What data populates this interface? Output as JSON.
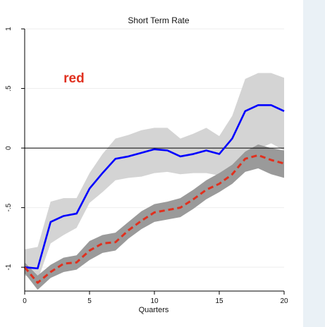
{
  "chart_data": {
    "type": "line",
    "title": "Short Term Rate",
    "xlabel": "Quarters",
    "ylabel": "",
    "xlim": [
      0,
      20
    ],
    "ylim": [
      -1.2,
      1.0
    ],
    "x_ticks": [
      0,
      5,
      10,
      15,
      20
    ],
    "y_ticks": [
      -1,
      -0.5,
      0,
      0.5,
      1
    ],
    "x_tick_labels": [
      "0",
      "5",
      "10",
      "15",
      "20"
    ],
    "y_tick_labels": [
      "-1",
      "-.5",
      "0",
      ".5",
      "1"
    ],
    "grid": true,
    "legend": "none",
    "annotations": [
      {
        "text": "red",
        "x": 3.8,
        "y": 0.55,
        "color": "#e0301e"
      }
    ],
    "x": [
      0,
      1,
      2,
      3,
      4,
      5,
      6,
      7,
      8,
      9,
      10,
      11,
      12,
      13,
      14,
      15,
      16,
      17,
      18,
      19,
      20
    ],
    "series": [
      {
        "color": "#0000ff",
        "style": "solid",
        "values": [
          -1.0,
          -1.01,
          -0.62,
          -0.57,
          -0.55,
          -0.34,
          -0.21,
          -0.09,
          -0.07,
          -0.04,
          -0.01,
          -0.02,
          -0.07,
          -0.05,
          -0.02,
          -0.05,
          0.08,
          0.31,
          0.36,
          0.36,
          0.31
        ],
        "band": {
          "color": "#d4d4d4",
          "lower": [
            -1.07,
            -1.11,
            -0.8,
            -0.73,
            -0.67,
            -0.46,
            -0.37,
            -0.27,
            -0.25,
            -0.24,
            -0.21,
            -0.2,
            -0.22,
            -0.21,
            -0.21,
            -0.23,
            -0.15,
            -0.06,
            -0.01,
            0.04,
            -0.02
          ],
          "upper": [
            -0.85,
            -0.83,
            -0.45,
            -0.42,
            -0.42,
            -0.21,
            -0.05,
            0.08,
            0.11,
            0.15,
            0.17,
            0.17,
            0.08,
            0.12,
            0.17,
            0.1,
            0.27,
            0.58,
            0.63,
            0.63,
            0.59
          ]
        }
      },
      {
        "color": "#e0301e",
        "style": "dashed",
        "values": [
          -1.0,
          -1.13,
          -1.04,
          -0.97,
          -0.96,
          -0.86,
          -0.8,
          -0.79,
          -0.69,
          -0.61,
          -0.54,
          -0.52,
          -0.5,
          -0.43,
          -0.35,
          -0.3,
          -0.22,
          -0.09,
          -0.06,
          -0.1,
          -0.13
        ],
        "band": {
          "color": "#9a9a9a",
          "lower": [
            -1.05,
            -1.19,
            -1.09,
            -1.04,
            -1.02,
            -0.94,
            -0.88,
            -0.86,
            -0.76,
            -0.68,
            -0.62,
            -0.6,
            -0.58,
            -0.51,
            -0.43,
            -0.37,
            -0.3,
            -0.2,
            -0.17,
            -0.22,
            -0.25
          ],
          "upper": [
            -0.96,
            -1.07,
            -0.98,
            -0.92,
            -0.9,
            -0.78,
            -0.73,
            -0.71,
            -0.62,
            -0.53,
            -0.47,
            -0.45,
            -0.42,
            -0.35,
            -0.27,
            -0.21,
            -0.14,
            -0.03,
            0.03,
            0.0,
            -0.02
          ]
        }
      }
    ],
    "reference_line": {
      "y": 0,
      "color": "#000000"
    }
  }
}
